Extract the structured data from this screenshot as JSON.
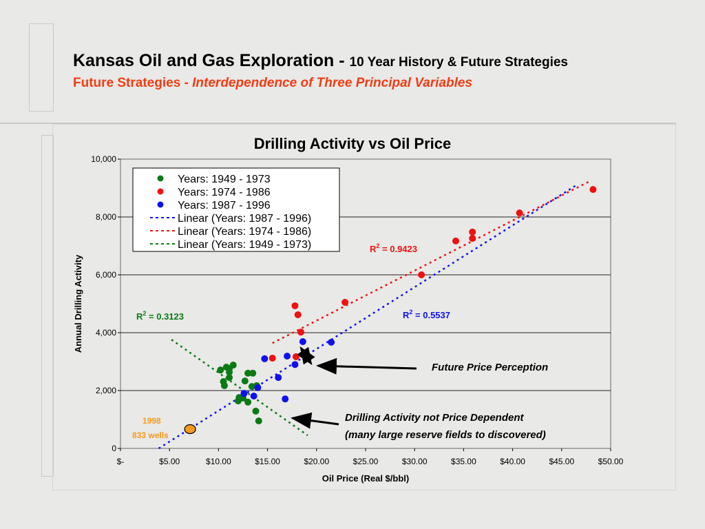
{
  "slide": {
    "title_main": "Kansas Oil and Gas Exploration - ",
    "title_sub": "10 Year History & Future Strategies",
    "subtitle_lead": "Future Strategies - ",
    "subtitle_italic": "Interdependence of Three Principal Variables"
  },
  "colors": {
    "green": "#0a7a14",
    "red": "#ee1111",
    "blue": "#1010ee",
    "orange": "#f59a1e",
    "title_red": "#f03c14"
  },
  "chart_data": {
    "type": "scatter",
    "title": "Drilling Activity vs Oil Price",
    "xlabel": "Oil Price (Real $/bbl)",
    "ylabel": "Annual Drilling Activity",
    "xlim": [
      0,
      50
    ],
    "ylim": [
      0,
      10000
    ],
    "x_ticks": [
      "$-",
      "$5.00",
      "$10.00",
      "$15.00",
      "$20.00",
      "$25.00",
      "$30.00",
      "$35.00",
      "$40.00",
      "$45.00",
      "$50.00"
    ],
    "y_ticks": [
      "0",
      "2,000",
      "4,000",
      "6,000",
      "8,000",
      "10,000"
    ],
    "grid": "horizontal",
    "legend_position": "top-left",
    "series": [
      {
        "name": "Years: 1949 - 1973",
        "color": "green",
        "points": [
          [
            10.2,
            2710
          ],
          [
            10.8,
            2810
          ],
          [
            11.1,
            2760
          ],
          [
            11.5,
            2880
          ],
          [
            11.1,
            2640
          ],
          [
            11.1,
            2450
          ],
          [
            10.5,
            2310
          ],
          [
            10.6,
            2170
          ],
          [
            13.0,
            2600
          ],
          [
            13.5,
            2600
          ],
          [
            12.7,
            2330
          ],
          [
            13.4,
            2140
          ],
          [
            13.9,
            2170
          ],
          [
            12.1,
            1760
          ],
          [
            12.5,
            1740
          ],
          [
            12.0,
            1640
          ],
          [
            13.0,
            1600
          ],
          [
            13.8,
            1290
          ],
          [
            14.1,
            950
          ]
        ]
      },
      {
        "name": "Years: 1974 - 1986",
        "color": "red",
        "points": [
          [
            15.5,
            3120
          ],
          [
            17.9,
            3170
          ],
          [
            18.4,
            4020
          ],
          [
            17.8,
            4930
          ],
          [
            18.1,
            4620
          ],
          [
            22.9,
            5050
          ],
          [
            30.7,
            6000
          ],
          [
            34.2,
            7170
          ],
          [
            35.9,
            7480
          ],
          [
            35.9,
            7260
          ],
          [
            40.7,
            8140
          ],
          [
            48.2,
            8950
          ]
        ]
      },
      {
        "name": "Years: 1987 - 1996",
        "color": "blue",
        "points": [
          [
            14.7,
            3100
          ],
          [
            12.6,
            1900
          ],
          [
            13.6,
            1810
          ],
          [
            14.0,
            2100
          ],
          [
            16.1,
            2450
          ],
          [
            16.8,
            1710
          ],
          [
            17.0,
            3190
          ],
          [
            17.8,
            2900
          ],
          [
            18.6,
            3690
          ],
          [
            21.5,
            3670
          ]
        ]
      }
    ],
    "trendlines": [
      {
        "name": "Linear (Years: 1987 - 1996)",
        "color": "blue",
        "from": [
          3.9,
          0
        ],
        "to": [
          46.6,
          9120
        ],
        "r2_label": "R",
        "r2_value": "2",
        "r2_text": " = 0.5537"
      },
      {
        "name": "Linear (Years: 1974 - 1986)",
        "color": "red",
        "from": [
          15.5,
          3640
        ],
        "to": [
          48.0,
          9260
        ],
        "r2_label": "R",
        "r2_value": "2",
        "r2_text": " = 0.9423"
      },
      {
        "name": "Linear (Years: 1949 - 1973)",
        "color": "green",
        "from": [
          5.2,
          3760
        ],
        "to": [
          19.1,
          450
        ],
        "r2_label": "R",
        "r2_value": "2",
        "r2_text": " = 0.3123"
      }
    ],
    "highlight": {
      "x": 7.1,
      "y": 833,
      "year": "1998",
      "label": "833 wells",
      "color": "orange"
    },
    "annotations": {
      "price_perception": "Future Price Perception",
      "not_dependent": "Drilling Activity not Price Dependent",
      "reserve_fields": "(many large reserve fields to discovered)"
    }
  }
}
